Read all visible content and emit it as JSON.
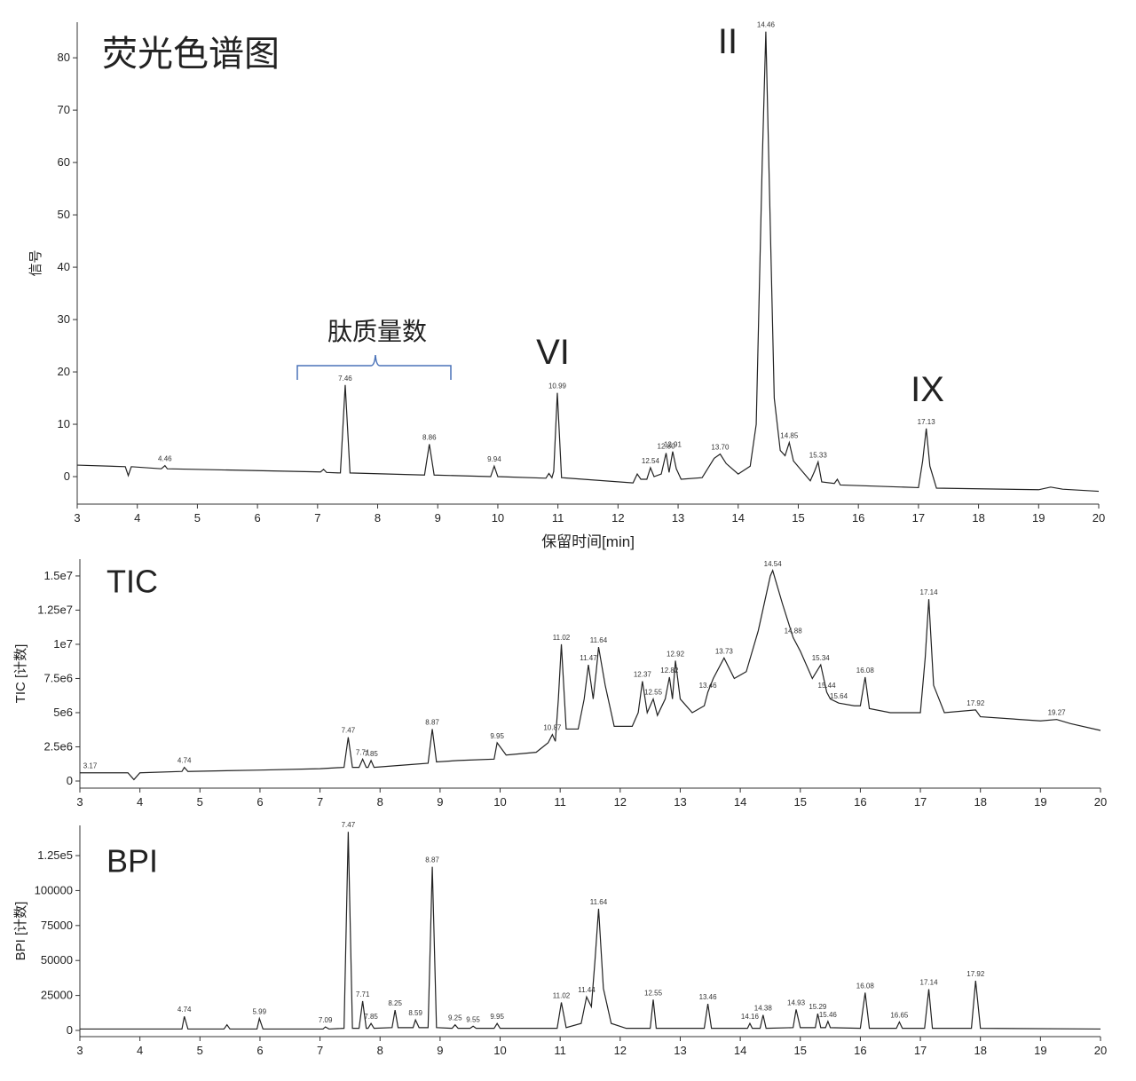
{
  "chart_data": [
    {
      "type": "line",
      "title": "荧光色谱图",
      "xlabel": "保留时间[min]",
      "ylabel": "信号",
      "annotations": [
        "II",
        "VI",
        "IX"
      ],
      "bracket_label": "肽质量数",
      "color": "#222222",
      "xlim": [
        3,
        20
      ],
      "ylim": [
        -5.25,
        86.8
      ],
      "xticks": [
        3,
        4,
        5,
        6,
        7,
        8,
        9,
        10,
        11,
        12,
        13,
        14,
        15,
        16,
        17,
        18,
        19,
        20
      ],
      "yticks": [
        0,
        10,
        20,
        30,
        40,
        50,
        60,
        70,
        80
      ],
      "x": [
        3,
        3.8,
        3.85,
        3.9,
        4.4,
        4.46,
        4.5,
        7.05,
        7.1,
        7.15,
        7.38,
        7.46,
        7.54,
        8.78,
        8.86,
        8.94,
        9.88,
        9.94,
        10.0,
        10.8,
        10.85,
        10.9,
        10.93,
        10.99,
        11.06,
        12.25,
        12.32,
        12.38,
        12.48,
        12.54,
        12.6,
        12.72,
        12.8,
        12.85,
        12.91,
        12.97,
        13.05,
        13.4,
        13.6,
        13.7,
        13.8,
        14.0,
        14.2,
        14.3,
        14.4,
        14.46,
        14.52,
        14.6,
        14.7,
        14.78,
        14.85,
        14.92,
        15.2,
        15.27,
        15.33,
        15.39,
        15.6,
        15.65,
        15.7,
        17.0,
        17.07,
        17.13,
        17.19,
        17.3,
        19.0,
        19.2,
        19.4,
        20
      ],
      "values": [
        2.2,
        1.9,
        0.2,
        1.9,
        1.5,
        2.1,
        1.5,
        0.9,
        1.4,
        0.8,
        0.7,
        17.5,
        0.7,
        0.3,
        6.2,
        0.3,
        0,
        2,
        0,
        -0.3,
        0.6,
        -0.2,
        1,
        16,
        -0.2,
        -1.2,
        0.5,
        -0.5,
        -0.5,
        1.7,
        0,
        0.5,
        4.5,
        0.8,
        4.8,
        1.5,
        -0.5,
        -0.2,
        3.5,
        4.3,
        2.5,
        0.5,
        2,
        10,
        60,
        85,
        55,
        15,
        5,
        4,
        6.5,
        3,
        -0.8,
        1,
        2.8,
        -1,
        -1.3,
        -0.5,
        -1.6,
        -2.1,
        3,
        9.2,
        2,
        -2.2,
        -2.5,
        -2.0,
        -2.4,
        -2.8
      ],
      "peaks": [
        {
          "x": 4.46,
          "label": "4.46"
        },
        {
          "x": 7.46,
          "label": "7.46"
        },
        {
          "x": 8.86,
          "label": "8.86"
        },
        {
          "x": 9.94,
          "label": "9.94"
        },
        {
          "x": 10.99,
          "label": "10.99"
        },
        {
          "x": 12.54,
          "label": "12.54"
        },
        {
          "x": 12.8,
          "label": "12.80"
        },
        {
          "x": 12.91,
          "label": "12.91"
        },
        {
          "x": 13.7,
          "label": "13.70"
        },
        {
          "x": 14.46,
          "label": "14.46"
        },
        {
          "x": 14.85,
          "label": "14.85"
        },
        {
          "x": 15.33,
          "label": "15.33"
        },
        {
          "x": 17.13,
          "label": "17.13"
        }
      ]
    },
    {
      "type": "line",
      "title": "TIC",
      "ylabel": "TIC [计数]",
      "color": "#222222",
      "xlim": [
        3,
        20
      ],
      "ylim": [
        -520000,
        16230000
      ],
      "xticks": [
        3,
        4,
        5,
        6,
        7,
        8,
        9,
        10,
        11,
        12,
        13,
        14,
        15,
        16,
        17,
        18,
        19,
        20
      ],
      "yticks": [
        0,
        {
          "value": 2500000,
          "label": "2.5e6"
        },
        {
          "value": 5000000,
          "label": "5e6"
        },
        {
          "value": 7500000,
          "label": "7.5e6"
        },
        {
          "value": 10000000,
          "label": "1e7"
        },
        {
          "value": 12500000,
          "label": "1.25e7"
        },
        {
          "value": 15000000,
          "label": "1.5e7"
        }
      ],
      "x": [
        3,
        3.17,
        3.8,
        3.9,
        4.0,
        4.7,
        4.74,
        4.8,
        6.0,
        7.0,
        7.4,
        7.47,
        7.54,
        7.65,
        7.71,
        7.77,
        7.8,
        7.85,
        7.9,
        8.5,
        8.8,
        8.87,
        8.94,
        9.3,
        9.9,
        9.95,
        10.1,
        10.6,
        10.8,
        10.87,
        10.92,
        10.97,
        11.02,
        11.1,
        11.3,
        11.4,
        11.47,
        11.55,
        11.6,
        11.64,
        11.75,
        11.9,
        12.2,
        12.3,
        12.37,
        12.45,
        12.55,
        12.62,
        12.75,
        12.82,
        12.87,
        12.92,
        13.0,
        13.2,
        13.4,
        13.46,
        13.55,
        13.73,
        13.9,
        14.1,
        14.3,
        14.5,
        14.54,
        14.7,
        14.88,
        15.0,
        15.2,
        15.34,
        15.44,
        15.5,
        15.64,
        15.9,
        16.0,
        16.08,
        16.15,
        16.5,
        17.0,
        17.08,
        17.14,
        17.22,
        17.4,
        17.92,
        18.0,
        19.0,
        19.27,
        19.5,
        20
      ],
      "values": [
        600000.0,
        600000.0,
        600000.0,
        100000.0,
        600000.0,
        700000.0,
        1000000.0,
        700000.0,
        800000.0,
        900000.0,
        1000000.0,
        3200000.0,
        1000000.0,
        1000000.0,
        1600000.0,
        1000000.0,
        1000000.0,
        1500000.0,
        1000000.0,
        1200000.0,
        1300000.0,
        3800000.0,
        1400000.0,
        1500000.0,
        1600000.0,
        2800000.0,
        1900000.0,
        2100000.0,
        2800000.0,
        3400000.0,
        2900000.0,
        6000000.0,
        10000000.0,
        3800000.0,
        3800000.0,
        6000000.0,
        8500000.0,
        6000000.0,
        8000000.0,
        9800000.0,
        7000000.0,
        4000000.0,
        4000000.0,
        5000000.0,
        7300000.0,
        5000000.0,
        6000000.0,
        4800000.0,
        6000000.0,
        7600000.0,
        6000000.0,
        8800000.0,
        6000000.0,
        5000000.0,
        5500000.0,
        6500000.0,
        7500000.0,
        9000000.0,
        7500000.0,
        8000000.0,
        11000000.0,
        15000000.0,
        15400000.0,
        13000000.0,
        10500000.0,
        9500000.0,
        7500000.0,
        8500000.0,
        6500000.0,
        6000000.0,
        5700000.0,
        5500000.0,
        5500000.0,
        7600000.0,
        5300000.0,
        5000000.0,
        5000000.0,
        9000000.0,
        13300000.0,
        7000000.0,
        5000000.0,
        5200000.0,
        4700000.0,
        4400000.0,
        4500000.0,
        4200000.0,
        3700000.0
      ],
      "peaks": [
        {
          "x": 3.17,
          "label": "3.17"
        },
        {
          "x": 4.74,
          "label": "4.74"
        },
        {
          "x": 7.47,
          "label": "7.47"
        },
        {
          "x": 7.71,
          "label": "7.71"
        },
        {
          "x": 7.85,
          "label": "7.85"
        },
        {
          "x": 8.87,
          "label": "8.87"
        },
        {
          "x": 9.95,
          "label": "9.95"
        },
        {
          "x": 10.87,
          "label": "10.87"
        },
        {
          "x": 11.02,
          "label": "11.02"
        },
        {
          "x": 11.47,
          "label": "11.47"
        },
        {
          "x": 11.64,
          "label": "11.64"
        },
        {
          "x": 12.37,
          "label": "12.37"
        },
        {
          "x": 12.55,
          "label": "12.55"
        },
        {
          "x": 12.82,
          "label": "12.82"
        },
        {
          "x": 12.92,
          "label": "12.92"
        },
        {
          "x": 13.46,
          "label": "13.46"
        },
        {
          "x": 13.73,
          "label": "13.73"
        },
        {
          "x": 14.54,
          "label": "14.54"
        },
        {
          "x": 14.88,
          "label": "14.88"
        },
        {
          "x": 15.34,
          "label": "15.34"
        },
        {
          "x": 15.44,
          "label": "15.44"
        },
        {
          "x": 15.64,
          "label": "15.64"
        },
        {
          "x": 16.08,
          "label": "16.08"
        },
        {
          "x": 17.14,
          "label": "17.14"
        },
        {
          "x": 17.92,
          "label": "17.92"
        },
        {
          "x": 19.27,
          "label": "19.27"
        }
      ]
    },
    {
      "type": "line",
      "title": "BPI",
      "ylabel": "BPI [计数]",
      "color": "#222222",
      "xlim": [
        3,
        20
      ],
      "ylim": [
        -4440,
        146600
      ],
      "xticks": [
        3,
        4,
        5,
        6,
        7,
        8,
        9,
        10,
        11,
        12,
        13,
        14,
        15,
        16,
        17,
        18,
        19,
        20
      ],
      "yticks": [
        0,
        25000,
        50000,
        75000,
        100000,
        {
          "value": 125000,
          "label": "1.25e5"
        }
      ],
      "x": [
        3,
        4.7,
        4.74,
        4.8,
        5.4,
        5.45,
        5.5,
        5.95,
        5.99,
        6.05,
        7.05,
        7.09,
        7.15,
        7.4,
        7.47,
        7.54,
        7.65,
        7.71,
        7.77,
        7.8,
        7.85,
        7.9,
        8.2,
        8.25,
        8.3,
        8.55,
        8.59,
        8.65,
        8.8,
        8.87,
        8.94,
        9.2,
        9.25,
        9.3,
        9.5,
        9.55,
        9.6,
        9.9,
        9.95,
        10.0,
        10.95,
        11.02,
        11.1,
        11.35,
        11.44,
        11.52,
        11.58,
        11.64,
        11.72,
        11.85,
        12.1,
        12.5,
        12.55,
        12.6,
        13.4,
        13.46,
        13.52,
        14.12,
        14.16,
        14.2,
        14.33,
        14.38,
        14.43,
        14.88,
        14.93,
        15.0,
        15.25,
        15.29,
        15.34,
        15.42,
        15.46,
        15.5,
        16.0,
        16.08,
        16.15,
        16.6,
        16.65,
        16.7,
        17.07,
        17.14,
        17.2,
        17.85,
        17.92,
        18.0,
        20
      ],
      "values": [
        1000,
        1000,
        10000,
        1000,
        1000,
        4000,
        1000,
        1000,
        8500,
        1000,
        1000,
        2500,
        1000,
        1500,
        142000,
        1500,
        1500,
        21000,
        1500,
        1500,
        5000,
        1500,
        2000,
        14500,
        2000,
        2000,
        7500,
        2000,
        2000,
        117000,
        2000,
        1500,
        4000,
        1500,
        1500,
        3000,
        1500,
        1500,
        5000,
        1500,
        1500,
        20000,
        2000,
        5000,
        24000,
        17000,
        50000,
        87000,
        30000,
        5000,
        1500,
        1500,
        22000,
        1500,
        1500,
        19000,
        1500,
        1500,
        5000,
        1500,
        1500,
        11000,
        1500,
        2000,
        15000,
        2000,
        2000,
        12000,
        2000,
        2000,
        6500,
        2000,
        1500,
        27000,
        1500,
        1500,
        6000,
        1500,
        1500,
        29500,
        1500,
        1500,
        35500,
        1500,
        1000
      ],
      "peaks": [
        {
          "x": 4.74,
          "label": "4.74"
        },
        {
          "x": 5.99,
          "label": "5.99"
        },
        {
          "x": 7.09,
          "label": "7.09"
        },
        {
          "x": 7.47,
          "label": "7.47"
        },
        {
          "x": 7.71,
          "label": "7.71"
        },
        {
          "x": 7.85,
          "label": "7.85"
        },
        {
          "x": 8.25,
          "label": "8.25"
        },
        {
          "x": 8.59,
          "label": "8.59"
        },
        {
          "x": 8.87,
          "label": "8.87"
        },
        {
          "x": 9.25,
          "label": "9.25"
        },
        {
          "x": 9.55,
          "label": "9.55"
        },
        {
          "x": 9.95,
          "label": "9.95"
        },
        {
          "x": 11.02,
          "label": "11.02"
        },
        {
          "x": 11.44,
          "label": "11.44"
        },
        {
          "x": 11.64,
          "label": "11.64"
        },
        {
          "x": 12.55,
          "label": "12.55"
        },
        {
          "x": 13.46,
          "label": "13.46"
        },
        {
          "x": 14.16,
          "label": "14.16"
        },
        {
          "x": 14.38,
          "label": "14.38"
        },
        {
          "x": 14.93,
          "label": "14.93"
        },
        {
          "x": 15.29,
          "label": "15.29"
        },
        {
          "x": 15.46,
          "label": "15.46"
        },
        {
          "x": 16.08,
          "label": "16.08"
        },
        {
          "x": 16.65,
          "label": "16.65"
        },
        {
          "x": 17.14,
          "label": "17.14"
        },
        {
          "x": 17.92,
          "label": "17.92"
        }
      ]
    }
  ]
}
